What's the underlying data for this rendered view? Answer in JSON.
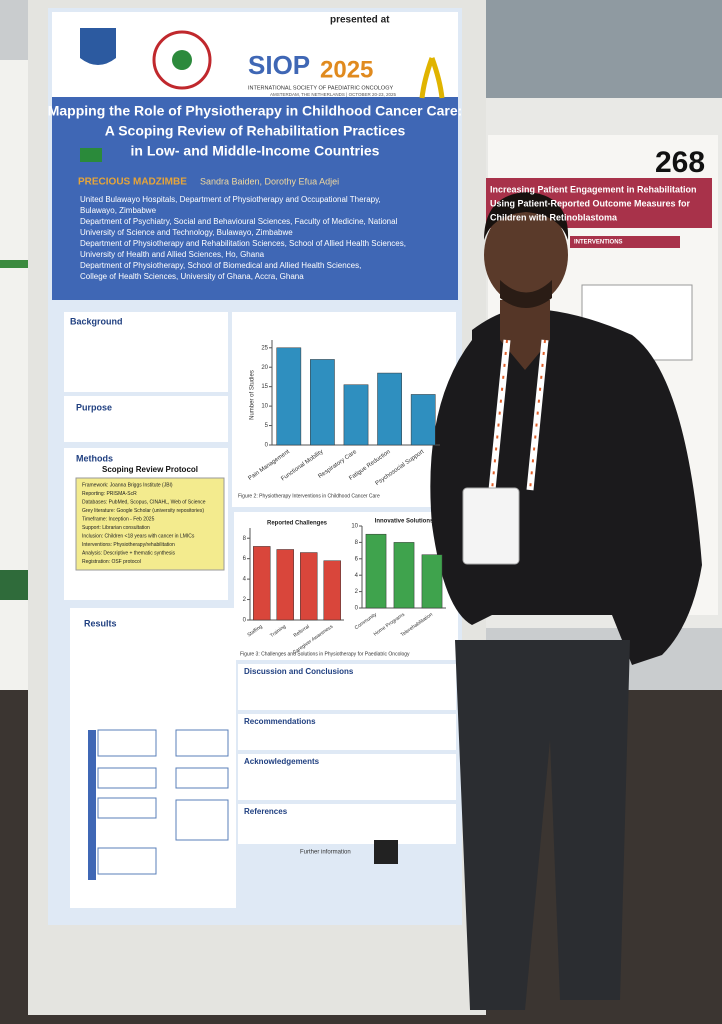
{
  "conference": {
    "presented_at": "presented at",
    "siop": "SIOP",
    "year": "2025",
    "society": "INTERNATIONAL SOCIETY OF PAEDIATRIC ONCOLOGY",
    "venue": "AMSTERDAM, THE NETHERLANDS | OCTOBER 20-23, 2025"
  },
  "title": [
    "Mapping the Role of Physiotherapy in Childhood Cancer Care:",
    "A Scoping Review of Rehabilitation Practices",
    "in Low- and Middle-Income Countries"
  ],
  "authors": {
    "lead": "PRECIOUS MADZIMBE",
    "others": "Sandra Baiden, Dorothy Efua Adjei"
  },
  "affiliations": [
    "United Bulawayo Hospitals, Department of Physiotherapy and Occupational Therapy,",
    "Bulawayo, Zimbabwe",
    "Department of Psychiatry, Social and Behavioural Sciences, Faculty of Medicine, National",
    "University of Science and Technology, Bulawayo, Zimbabwe",
    "Department of Physiotherapy and Rehabilitation Sciences, School of Allied Health Sciences,",
    "University of Health and Allied Sciences, Ho, Ghana",
    "Department of Physiotherapy, School of Biomedical and Allied Health Sciences,",
    "College of Health Sciences, University of Ghana, Accra, Ghana"
  ],
  "sections": {
    "background": "Background",
    "purpose": "Purpose",
    "methods": "Methods",
    "protocol": "Scoping Review Protocol",
    "results": "Results",
    "discussion": "Discussion and Conclusions",
    "recommendations": "Recommendations",
    "acknowledgements": "Acknowledgements",
    "references": "References",
    "further": "Further information"
  },
  "protocol_items": [
    "Framework: Joanna Briggs Institute (JBI)",
    "Reporting: PRISMA-ScR",
    "Databases: PubMed, Scopus, CINAHL, Web of Science",
    "Grey literature: Google Scholar (university repositories)",
    "Timeframe: Inception - Feb 2025",
    "Support: Librarian consultation",
    "Inclusion: Children <18 years with cancer in LMICs",
    "Interventions: Physiotherapy/rehabilitation",
    "Analysis: Descriptive + thematic synthesis",
    "Registration: OSF protocol"
  ],
  "chart1": {
    "type": "bar",
    "ylabel": "Number of Studies",
    "categories": [
      "Pain Management",
      "Functional Mobility",
      "Respiratory Care",
      "Fatigue Reduction",
      "Psychosocial Support"
    ],
    "values": [
      25,
      22,
      15.5,
      18.5,
      13
    ],
    "color": "#2f8fbf",
    "ylim": [
      0,
      27
    ],
    "yticks": [
      0,
      5,
      10,
      15,
      20,
      25
    ],
    "caption": "Figure 2: Physiotherapy Interventions in Childhood Cancer Care"
  },
  "chart2": {
    "type": "bar",
    "caption": "Figure 3: Challenges and Solutions in Physiotherapy for Paediatric Oncology",
    "panels": [
      {
        "title": "Reported Challenges",
        "categories": [
          "Staffing",
          "Training",
          "Referral",
          "Caregiver Awareness"
        ],
        "values": [
          7.2,
          6.9,
          6.6,
          5.8
        ],
        "color": "#d9463b",
        "ylim": [
          0,
          9
        ],
        "yticks": [
          0,
          2,
          4,
          6,
          8
        ]
      },
      {
        "title": "Innovative Solutions",
        "categories": [
          "Community",
          "Home Programs",
          "Telerehabilitation"
        ],
        "values": [
          9,
          8,
          6.5
        ],
        "color": "#3fa34d",
        "ylim": [
          0,
          10
        ],
        "yticks": [
          0,
          2,
          4,
          6,
          8,
          10
        ]
      }
    ]
  },
  "neighbor": {
    "number": "268",
    "title": [
      "Increasing Patient Engagement in Rehabilitation",
      "Using Patient-Reported Outcome Measures for",
      "Children with Retinoblastoma"
    ],
    "heading": "INTERVENTIONS"
  }
}
